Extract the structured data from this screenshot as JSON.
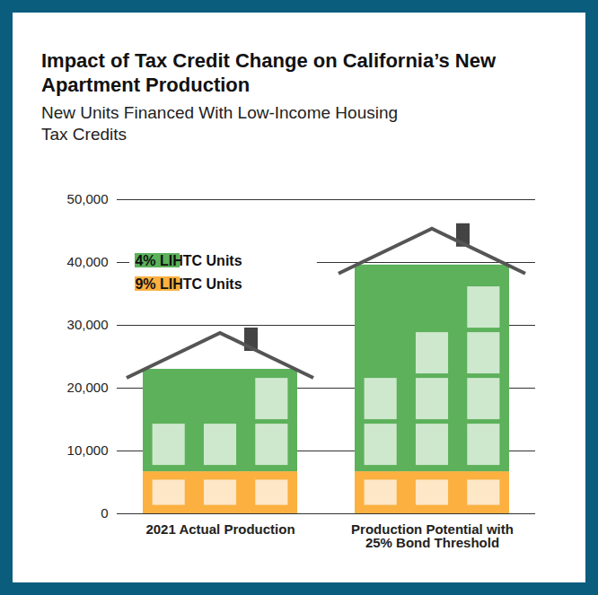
{
  "chart_data": {
    "type": "bar",
    "title": "Impact of Tax Credit Change on California’s New Apartment Production",
    "subtitle": "New Units Financed With Low-Income Housing Tax Credits",
    "categories": [
      "2021 Actual Production",
      "Production Potential with 25% Bond Threshold"
    ],
    "series": [
      {
        "name": "4% LIHTC Units",
        "color": "#5cb15a",
        "values": [
          16300,
          32900
        ]
      },
      {
        "name": "9% LIHTC Units",
        "color": "#fbb040",
        "values": [
          6700,
          6700
        ]
      }
    ],
    "stacked": true,
    "ylim": [
      0,
      50000
    ],
    "yticks": [
      0,
      {
        "value": 10000,
        "label": "10,000"
      },
      {
        "value": 20000,
        "label": "20,000"
      },
      {
        "value": 30000,
        "label": "30,000"
      },
      {
        "value": 40000,
        "label": "40,000"
      },
      {
        "value": 50000,
        "label": "50,000"
      }
    ],
    "grid": true,
    "legend": "top-left"
  }
}
